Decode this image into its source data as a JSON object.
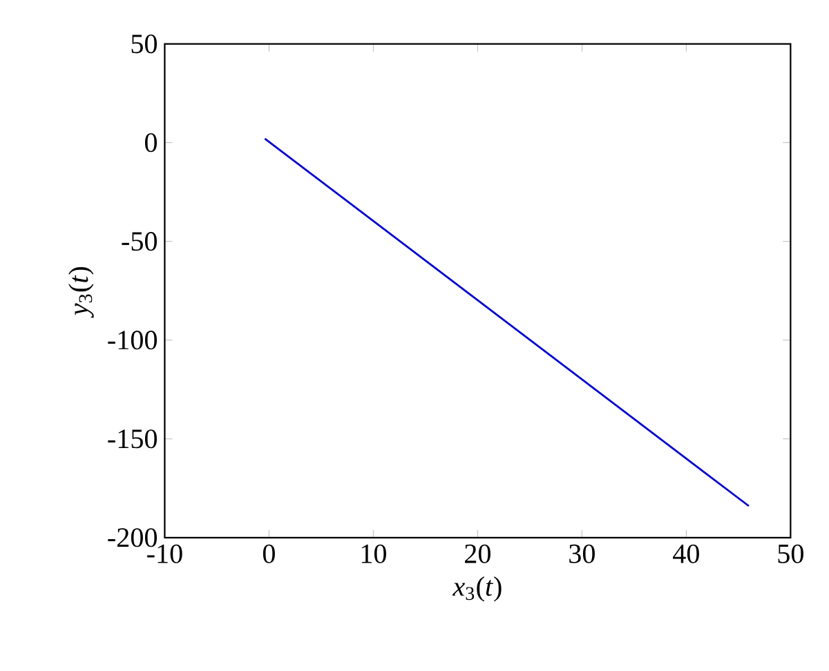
{
  "chart_data": {
    "type": "line",
    "xlabel": "*x*$_{3}$(*t*)",
    "ylabel": "*y*$_{3}$(*t*)",
    "xlim": [
      -10,
      50
    ],
    "ylim": [
      -200,
      50
    ],
    "xticks": [
      -10,
      0,
      10,
      20,
      30,
      40,
      50
    ],
    "yticks": [
      -200,
      -150,
      -100,
      -50,
      0,
      50
    ],
    "series": [
      {
        "color": "#0000d0",
        "x": [
          -0.4,
          46
        ],
        "values": [
          2,
          -184
        ]
      }
    ]
  }
}
